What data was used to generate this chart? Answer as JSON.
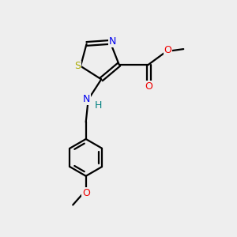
{
  "background_color": "#eeeeee",
  "bond_color": "#000000",
  "S_color": "#aaaa00",
  "N_color": "#0000ee",
  "O_color": "#ee0000",
  "H_color": "#008080",
  "lw": 1.6,
  "xlim": [
    0,
    10
  ],
  "ylim": [
    0,
    10
  ]
}
